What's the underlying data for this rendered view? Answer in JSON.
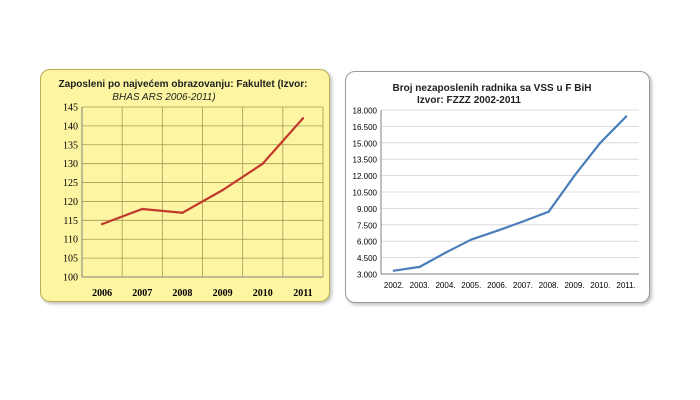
{
  "chart_data": [
    {
      "type": "line",
      "title": "Zaposleni po najvećem obrazovanju: Fakultet (Izvor:",
      "subtitle": "BHAS ARS 2006-2011)",
      "categories": [
        "2006",
        "2007",
        "2008",
        "2009",
        "2010",
        "2011"
      ],
      "values": [
        114,
        118,
        117,
        123,
        130,
        142
      ],
      "yticks": [
        "100",
        "105",
        "110",
        "115",
        "120",
        "125",
        "130",
        "135",
        "140",
        "145"
      ],
      "ylim": [
        100,
        145
      ],
      "grid": true,
      "legend": "none",
      "line_color": "#c0392b",
      "plot_bg": "#fdf5a2",
      "grid_color": "#a69a58"
    },
    {
      "type": "line",
      "title": "Broj nezaposlenih radnika sa VSS  u F BiH",
      "subtitle": "Izvor: FZZZ 2002-2011",
      "categories": [
        "2002.",
        "2003.",
        "2004.",
        "2005.",
        "2006.",
        "2007.",
        "2008.",
        "2009.",
        "2010.",
        "2011."
      ],
      "values": [
        3300,
        3650,
        4950,
        6150,
        6950,
        7800,
        8700,
        12000,
        15000,
        17400
      ],
      "yticks": [
        "3.000",
        "4.500",
        "6.000",
        "7.500",
        "9.000",
        "10.500",
        "12.000",
        "13.500",
        "15.000",
        "16.500",
        "18.000"
      ],
      "ylim": [
        3000,
        18000
      ],
      "grid": true,
      "legend": "none",
      "line_color": "#4a7ebb",
      "grid_color": "#d4d4d4"
    }
  ]
}
